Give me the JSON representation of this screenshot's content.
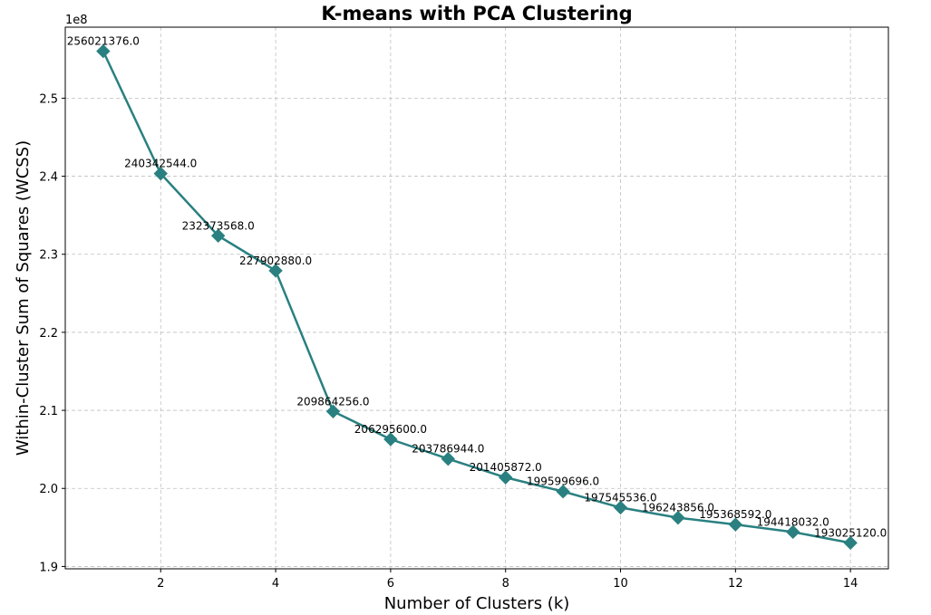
{
  "chart_data": {
    "type": "line",
    "title": "K-means with PCA Clustering",
    "xlabel": "Number of Clusters (k)",
    "ylabel": "Within-Cluster Sum of Squares (WCSS)",
    "y_offset_label": "1e8",
    "y_scale": 100000000,
    "xlim": [
      0.34,
      14.66
    ],
    "ylim": [
      189700000,
      259100000
    ],
    "x_ticks": [
      2,
      4,
      6,
      8,
      10,
      12,
      14
    ],
    "x_tick_labels": [
      "2",
      "4",
      "6",
      "8",
      "10",
      "12",
      "14"
    ],
    "y_ticks": [
      190000000,
      200000000,
      210000000,
      220000000,
      230000000,
      240000000,
      250000000
    ],
    "y_tick_labels": [
      "1.9",
      "2.0",
      "2.1",
      "2.2",
      "2.3",
      "2.4",
      "2.5"
    ],
    "grid": true,
    "color": "#2a8080",
    "marker": "diamond",
    "x": [
      1,
      2,
      3,
      4,
      5,
      6,
      7,
      8,
      9,
      10,
      11,
      12,
      13,
      14
    ],
    "values": [
      256021376.0,
      240342544.0,
      232373568.0,
      227902880.0,
      209864256.0,
      206295600.0,
      203786944.0,
      201405872.0,
      199599696.0,
      197545536.0,
      196243856.0,
      195368592.0,
      194418032.0,
      193025120.0
    ],
    "data_labels": [
      "256021376.0",
      "240342544.0",
      "232373568.0",
      "227902880.0",
      "209864256.0",
      "206295600.0",
      "203786944.0",
      "201405872.0",
      "199599696.0",
      "197545536.0",
      "196243856.0",
      "195368592.0",
      "194418032.0",
      "193025120.0"
    ]
  }
}
